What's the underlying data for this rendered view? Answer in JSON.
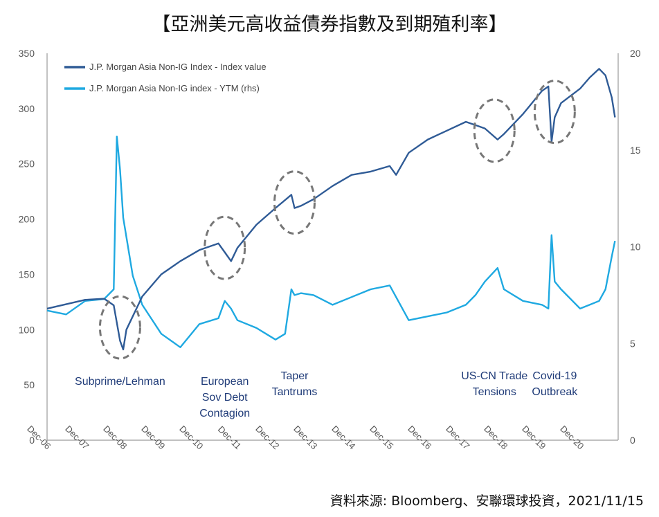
{
  "title": "【亞洲美元高收益債券指數及到期殖利率】",
  "source": "資料來源: Bloomberg、安聯環球投資，2021/11/15",
  "colors": {
    "index": "#2f5b96",
    "ytm": "#1fa9e1",
    "axis": "#9a9a9a",
    "circle": "#777777",
    "event_text": "#1f3b78"
  },
  "chart_data": {
    "type": "line",
    "legend": {
      "placement": "top-left"
    },
    "grid": false,
    "x_ticks": [
      "Dec-06",
      "Dec-07",
      "Dec-08",
      "Dec-09",
      "Dec-10",
      "Dec-11",
      "Dec-12",
      "Dec-13",
      "Dec-14",
      "Dec-15",
      "Dec-16",
      "Dec-17",
      "Dec-18",
      "Dec-19",
      "Dec-20"
    ],
    "y_left": {
      "range": [
        0,
        350
      ],
      "ticks": [
        "0",
        "50",
        "100",
        "150",
        "200",
        "250",
        "300",
        "350"
      ]
    },
    "y_right": {
      "range": [
        0,
        20
      ],
      "ticks": [
        "0",
        "5",
        "10",
        "15",
        "20"
      ]
    },
    "series": [
      {
        "name": "J.P. Morgan Asia Non-IG Index - Index value",
        "axis": "left",
        "x": [
          "2006-12",
          "2007-06",
          "2007-12",
          "2008-06",
          "2008-09",
          "2008-11",
          "2008-12",
          "2009-01",
          "2009-06",
          "2009-12",
          "2010-06",
          "2010-12",
          "2011-06",
          "2011-08",
          "2011-10",
          "2011-12",
          "2012-06",
          "2012-12",
          "2013-05",
          "2013-06",
          "2013-08",
          "2013-12",
          "2014-06",
          "2014-12",
          "2015-06",
          "2015-12",
          "2016-02",
          "2016-06",
          "2016-12",
          "2017-06",
          "2017-12",
          "2018-03",
          "2018-06",
          "2018-10",
          "2018-12",
          "2019-06",
          "2019-12",
          "2020-02",
          "2020-03",
          "2020-04",
          "2020-06",
          "2020-12",
          "2021-03",
          "2021-06",
          "2021-08",
          "2021-10",
          "2021-11"
        ],
        "values": [
          119,
          123,
          127,
          128,
          122,
          90,
          82,
          100,
          130,
          150,
          162,
          172,
          178,
          170,
          162,
          174,
          195,
          210,
          222,
          210,
          212,
          218,
          230,
          240,
          243,
          248,
          240,
          260,
          272,
          280,
          288,
          285,
          282,
          272,
          277,
          295,
          316,
          320,
          270,
          292,
          305,
          318,
          328,
          336,
          330,
          310,
          292
        ]
      },
      {
        "name": "J.P. Morgan Asia Non-IG index - YTM (rhs)",
        "axis": "right",
        "x": [
          "2006-12",
          "2007-06",
          "2007-12",
          "2008-06",
          "2008-09",
          "2008-10",
          "2008-11",
          "2008-12",
          "2009-01",
          "2009-03",
          "2009-06",
          "2009-12",
          "2010-06",
          "2010-12",
          "2011-06",
          "2011-08",
          "2011-10",
          "2011-12",
          "2012-06",
          "2012-12",
          "2013-03",
          "2013-05",
          "2013-06",
          "2013-08",
          "2013-12",
          "2014-06",
          "2014-12",
          "2015-06",
          "2015-12",
          "2016-06",
          "2016-12",
          "2017-06",
          "2017-12",
          "2018-03",
          "2018-06",
          "2018-10",
          "2018-12",
          "2019-06",
          "2019-12",
          "2020-02",
          "2020-03",
          "2020-04",
          "2020-06",
          "2020-12",
          "2021-03",
          "2021-06",
          "2021-08",
          "2021-10",
          "2021-11"
        ],
        "values": [
          6.7,
          6.5,
          7.2,
          7.3,
          7.8,
          15.7,
          14.0,
          11.5,
          10.5,
          8.5,
          7.0,
          5.5,
          4.8,
          6.0,
          6.3,
          7.2,
          6.8,
          6.2,
          5.8,
          5.2,
          5.5,
          7.8,
          7.5,
          7.6,
          7.5,
          7.0,
          7.4,
          7.8,
          8.0,
          6.2,
          6.4,
          6.6,
          7.0,
          7.5,
          8.2,
          8.9,
          7.8,
          7.2,
          7.0,
          6.8,
          10.6,
          8.2,
          7.8,
          6.8,
          7.0,
          7.2,
          7.8,
          9.5,
          10.3
        ]
      }
    ],
    "annotations": [
      {
        "id": "subprime",
        "text": [
          "Subprime/Lehman"
        ],
        "date": "2008-11",
        "circle": {
          "date": "2008-11",
          "y_left": 102
        }
      },
      {
        "id": "euro",
        "text": [
          "European",
          "Sov Debt",
          "Contagion"
        ],
        "date": "2011-08",
        "circle": {
          "date": "2011-08",
          "y_left": 174
        }
      },
      {
        "id": "taper",
        "text": [
          "Taper",
          "Tantrums"
        ],
        "date": "2013-06",
        "circle": {
          "date": "2013-06",
          "y_left": 215
        }
      },
      {
        "id": "uscn",
        "text": [
          "US-CN Trade",
          "Tensions"
        ],
        "date": "2018-09",
        "circle": {
          "date": "2018-09",
          "y_left": 280
        }
      },
      {
        "id": "covid",
        "text": [
          "Covid-19",
          "Outbreak"
        ],
        "date": "2020-04",
        "circle": {
          "date": "2020-04",
          "y_left": 297
        }
      }
    ]
  }
}
